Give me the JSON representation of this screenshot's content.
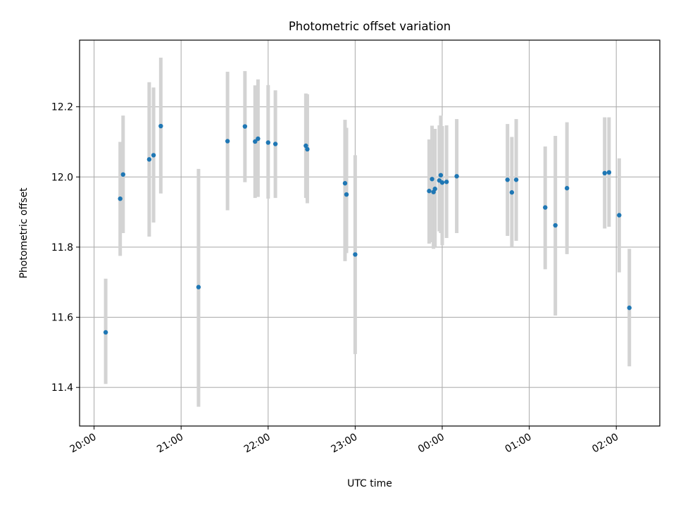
{
  "chart_data": {
    "type": "scatter",
    "title": "Photometric offset variation",
    "xlabel": "UTC time",
    "ylabel": "Photometric offset",
    "x_axis": {
      "unit": "UTC time (HH:MM)",
      "range": [
        "19:50",
        "02:30"
      ],
      "ticks": [
        "20:00",
        "21:00",
        "22:00",
        "23:00",
        "00:00",
        "01:00",
        "02:00"
      ]
    },
    "ylim": [
      11.29,
      12.39
    ],
    "yticks": [
      "11.4",
      "11.6",
      "11.8",
      "12.0",
      "12.2"
    ],
    "grid": true,
    "legend": "none",
    "marker_color": "#1f77b4",
    "errorbar_color": "#d3d3d3",
    "points": [
      {
        "t": "20:08",
        "y": 11.557,
        "lo": 11.41,
        "hi": 11.71
      },
      {
        "t": "20:18",
        "y": 11.938,
        "lo": 11.775,
        "hi": 12.1
      },
      {
        "t": "20:20",
        "y": 12.007,
        "lo": 11.84,
        "hi": 12.175
      },
      {
        "t": "20:38",
        "y": 12.05,
        "lo": 11.83,
        "hi": 12.27
      },
      {
        "t": "20:41",
        "y": 12.062,
        "lo": 11.87,
        "hi": 12.255
      },
      {
        "t": "20:46",
        "y": 12.145,
        "lo": 11.953,
        "hi": 12.34
      },
      {
        "t": "21:12",
        "y": 11.686,
        "lo": 11.345,
        "hi": 12.023
      },
      {
        "t": "21:32",
        "y": 12.102,
        "lo": 11.905,
        "hi": 12.3
      },
      {
        "t": "21:44",
        "y": 12.144,
        "lo": 11.985,
        "hi": 12.302
      },
      {
        "t": "21:51",
        "y": 12.101,
        "lo": 11.94,
        "hi": 12.261
      },
      {
        "t": "21:53",
        "y": 12.109,
        "lo": 11.943,
        "hi": 12.278
      },
      {
        "t": "22:00",
        "y": 12.098,
        "lo": 11.938,
        "hi": 12.262
      },
      {
        "t": "22:05",
        "y": 12.094,
        "lo": 11.94,
        "hi": 12.247
      },
      {
        "t": "22:26",
        "y": 12.089,
        "lo": 11.94,
        "hi": 12.238
      },
      {
        "t": "22:27",
        "y": 12.079,
        "lo": 11.925,
        "hi": 12.236
      },
      {
        "t": "22:53",
        "y": 11.982,
        "lo": 11.76,
        "hi": 12.163
      },
      {
        "t": "22:54",
        "y": 11.95,
        "lo": 11.783,
        "hi": 12.14
      },
      {
        "t": "23:00",
        "y": 11.779,
        "lo": 11.495,
        "hi": 12.062
      },
      {
        "t": "23:51",
        "y": 11.96,
        "lo": 11.81,
        "hi": 12.107
      },
      {
        "t": "23:53",
        "y": 11.994,
        "lo": 11.814,
        "hi": 12.146
      },
      {
        "t": "23:54",
        "y": 11.957,
        "lo": 11.795,
        "hi": 12.12
      },
      {
        "t": "23:55",
        "y": 11.966,
        "lo": 11.8,
        "hi": 12.137
      },
      {
        "t": "23:58",
        "y": 11.99,
        "lo": 11.845,
        "hi": 12.147
      },
      {
        "t": "23:59",
        "y": 12.005,
        "lo": 11.84,
        "hi": 12.175
      },
      {
        "t": "00:00",
        "y": 11.984,
        "lo": 11.805,
        "hi": 12.145
      },
      {
        "t": "00:03",
        "y": 11.986,
        "lo": 11.826,
        "hi": 12.147
      },
      {
        "t": "00:10",
        "y": 12.002,
        "lo": 11.84,
        "hi": 12.165
      },
      {
        "t": "00:45",
        "y": 11.992,
        "lo": 11.832,
        "hi": 12.151
      },
      {
        "t": "00:48",
        "y": 11.956,
        "lo": 11.8,
        "hi": 12.114
      },
      {
        "t": "00:51",
        "y": 11.992,
        "lo": 11.818,
        "hi": 12.165
      },
      {
        "t": "01:11",
        "y": 11.913,
        "lo": 11.737,
        "hi": 12.087
      },
      {
        "t": "01:18",
        "y": 11.862,
        "lo": 11.605,
        "hi": 12.117
      },
      {
        "t": "01:26",
        "y": 11.968,
        "lo": 11.78,
        "hi": 12.156
      },
      {
        "t": "01:52",
        "y": 12.011,
        "lo": 11.853,
        "hi": 12.17
      },
      {
        "t": "01:55",
        "y": 12.013,
        "lo": 11.858,
        "hi": 12.17
      },
      {
        "t": "02:02",
        "y": 11.891,
        "lo": 11.728,
        "hi": 12.053
      },
      {
        "t": "02:09",
        "y": 11.627,
        "lo": 11.46,
        "hi": 11.795
      }
    ]
  }
}
